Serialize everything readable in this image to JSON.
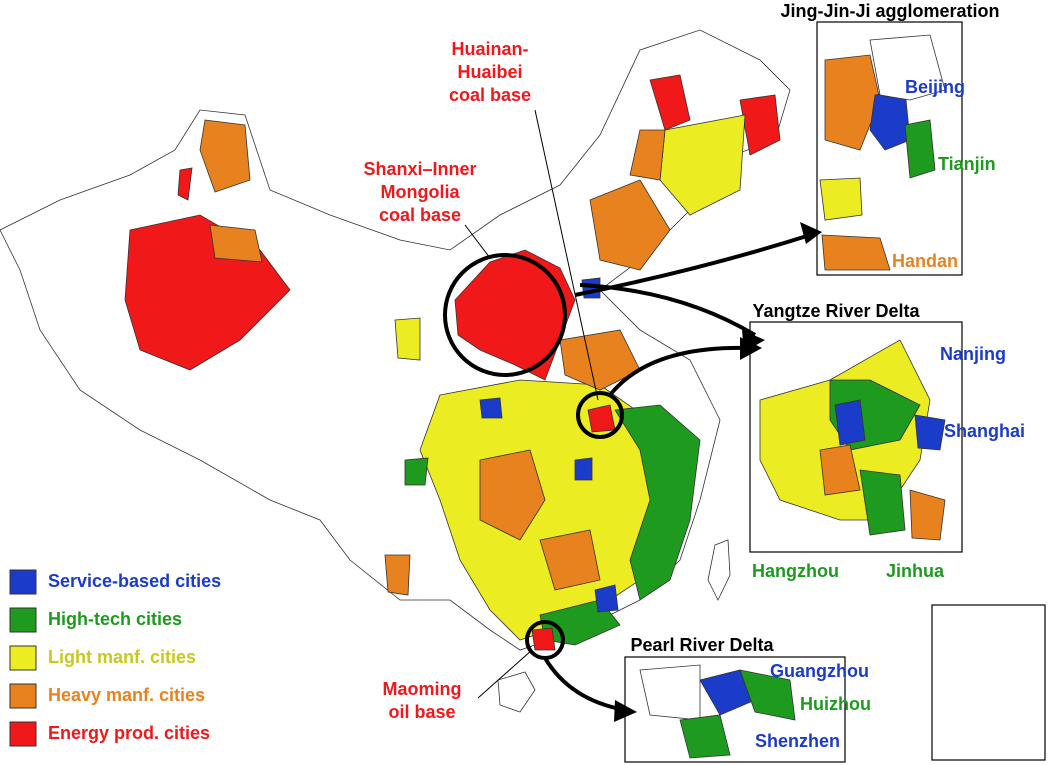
{
  "legend": [
    {
      "label": "Service-based cities",
      "color": "#1a3cc8",
      "text_color": "#1a3cc8"
    },
    {
      "label": "High-tech cities",
      "color": "#1e9a1e",
      "text_color": "#1e9a1e"
    },
    {
      "label": "Light manf. cities",
      "color": "#ecec22",
      "text_color": "#c9c91c"
    },
    {
      "label": "Heavy manf. cities",
      "color": "#e8821e",
      "text_color": "#e8821e"
    },
    {
      "label": "Energy prod. cities",
      "color": "#f01818",
      "text_color": "#f01818"
    }
  ],
  "annotations": [
    {
      "lines": [
        "Huainan-",
        "Huaibei",
        "coal base"
      ],
      "color": "#f01818"
    },
    {
      "lines": [
        "Shanxi–Inner",
        "Mongolia",
        "coal base"
      ],
      "color": "#f01818"
    },
    {
      "lines": [
        "Maoming",
        "oil base"
      ],
      "color": "#f01818"
    }
  ],
  "insets": [
    {
      "title": "Jing-Jin-Ji agglomeration",
      "cities": [
        {
          "name": "Beijing",
          "color": "#1a3cc8"
        },
        {
          "name": "Tianjin",
          "color": "#1e9a1e"
        },
        {
          "name": "Handan",
          "color": "#e8821e"
        }
      ]
    },
    {
      "title": "Yangtze River Delta",
      "cities": [
        {
          "name": "Nanjing",
          "color": "#1a3cc8"
        },
        {
          "name": "Shanghai",
          "color": "#1a3cc8"
        },
        {
          "name": "Hangzhou",
          "color": "#1e9a1e"
        },
        {
          "name": "Jinhua",
          "color": "#1e9a1e"
        }
      ]
    },
    {
      "title": "Pearl River Delta",
      "cities": [
        {
          "name": "Guangzhou",
          "color": "#1a3cc8"
        },
        {
          "name": "Huizhou",
          "color": "#1e9a1e"
        },
        {
          "name": "Shenzhen",
          "color": "#1a3cc8"
        }
      ]
    }
  ]
}
